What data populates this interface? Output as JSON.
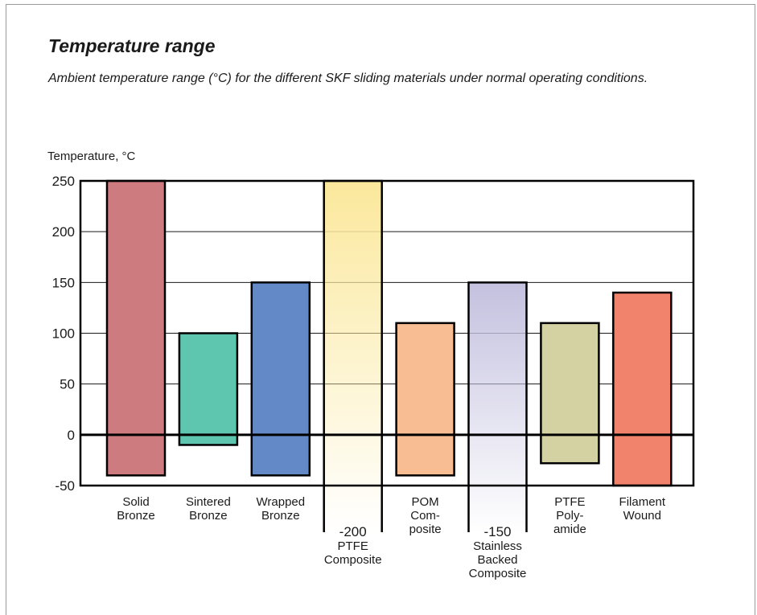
{
  "title": "Temperature range",
  "subtitle": "Ambient temperature range (°C) for the different SKF sliding materials under normal operating conditions.",
  "chart_data": {
    "type": "bar",
    "title": "Temperature range",
    "ylabel": "Temperature, °C",
    "xlabel": "",
    "ylim": [
      -50,
      250
    ],
    "yticks": [
      250,
      200,
      150,
      100,
      50,
      0,
      -50
    ],
    "grid": true,
    "categories": [
      [
        "Solid",
        "Bronze"
      ],
      [
        "Sintered",
        "Bronze"
      ],
      [
        "Wrapped",
        "Bronze"
      ],
      [
        "PTFE",
        "Composite"
      ],
      [
        "POM",
        "Com-",
        "posite"
      ],
      [
        "Stainless",
        "Backed",
        "Composite"
      ],
      [
        "PTFE",
        "Poly-",
        "amide"
      ],
      [
        "Filament",
        "Wound"
      ]
    ],
    "ranges": [
      {
        "min": -40,
        "max": 250,
        "color": "#cd7b7f"
      },
      {
        "min": -10,
        "max": 100,
        "color": "#5ec5ae"
      },
      {
        "min": -40,
        "max": 150,
        "color": "#638ac6"
      },
      {
        "min": -200,
        "max": 250,
        "color": "#fbe89c",
        "min_label": "-200"
      },
      {
        "min": -40,
        "max": 110,
        "color": "#f8bd93"
      },
      {
        "min": -150,
        "max": 150,
        "color": "#c4c1df",
        "min_label": "-150"
      },
      {
        "min": -28,
        "max": 110,
        "color": "#d4d1a2"
      },
      {
        "min": -50,
        "max": 140,
        "color": "#f1836c"
      }
    ]
  }
}
